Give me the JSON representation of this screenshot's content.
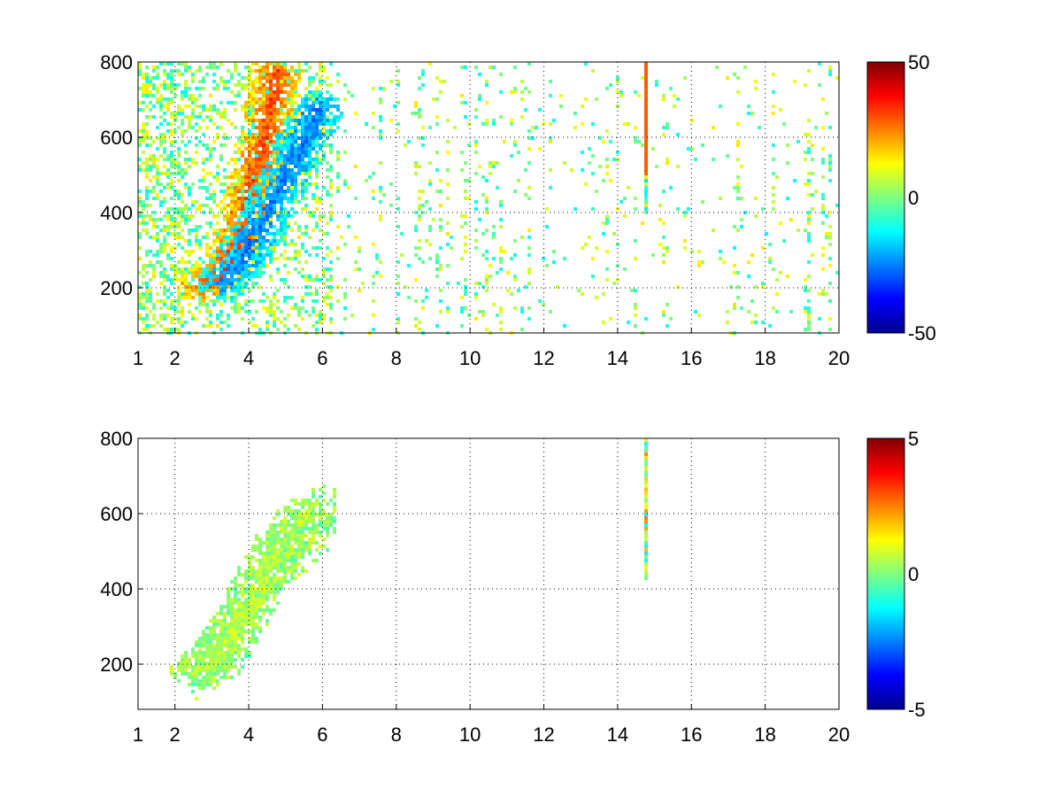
{
  "chart_data": [
    {
      "type": "heatmap",
      "title": "",
      "xlabel": "",
      "ylabel": "",
      "x_ticks": [
        "1",
        "2",
        "4",
        "6",
        "8",
        "10",
        "12",
        "14",
        "16",
        "18",
        "20"
      ],
      "y_ticks": [
        "200",
        "400",
        "600",
        "800"
      ],
      "xlim": [
        1,
        20
      ],
      "ylim": [
        80,
        800
      ],
      "grid": true,
      "grid_style": "dotted",
      "colormap": "jet",
      "clim": [
        -50,
        50
      ],
      "colorbar": {
        "labels": [
          "50",
          "0",
          "-50"
        ],
        "placement": "right"
      },
      "features": [
        {
          "name": "ridge-positive",
          "points": [
            [
              2.7,
              210
            ],
            [
              3.2,
              250
            ],
            [
              3.7,
              330
            ],
            [
              4.0,
              450
            ],
            [
              4.4,
              600
            ],
            [
              4.7,
              780
            ]
          ],
          "value": 30
        },
        {
          "name": "ridge-negative",
          "points": [
            [
              3.3,
              220
            ],
            [
              3.8,
              280
            ],
            [
              4.2,
              360
            ],
            [
              4.8,
              470
            ],
            [
              5.3,
              560
            ],
            [
              5.8,
              680
            ]
          ],
          "value": -25
        },
        {
          "name": "column-14.7",
          "x": 14.7,
          "y_range": [
            400,
            800
          ],
          "value": 28
        }
      ]
    },
    {
      "type": "heatmap",
      "title": "",
      "xlabel": "",
      "ylabel": "",
      "x_ticks": [
        "1",
        "2",
        "4",
        "6",
        "8",
        "10",
        "12",
        "14",
        "16",
        "18",
        "20"
      ],
      "y_ticks": [
        "200",
        "400",
        "600",
        "800"
      ],
      "xlim": [
        1,
        20
      ],
      "ylim": [
        80,
        800
      ],
      "grid": true,
      "grid_style": "dotted",
      "colormap": "jet",
      "clim": [
        -5,
        5
      ],
      "colorbar": {
        "labels": [
          "5",
          "0",
          "-5"
        ],
        "placement": "right"
      },
      "features": [
        {
          "name": "ridge-cluster",
          "points": [
            [
              2.6,
              190
            ],
            [
              3.2,
              240
            ],
            [
              3.8,
              330
            ],
            [
              4.3,
              430
            ],
            [
              4.8,
              520
            ],
            [
              5.5,
              600
            ]
          ],
          "value": 0.5
        },
        {
          "name": "column-14.7",
          "x": 14.7,
          "y_range": [
            430,
            800
          ],
          "value": 0.5
        }
      ]
    }
  ]
}
